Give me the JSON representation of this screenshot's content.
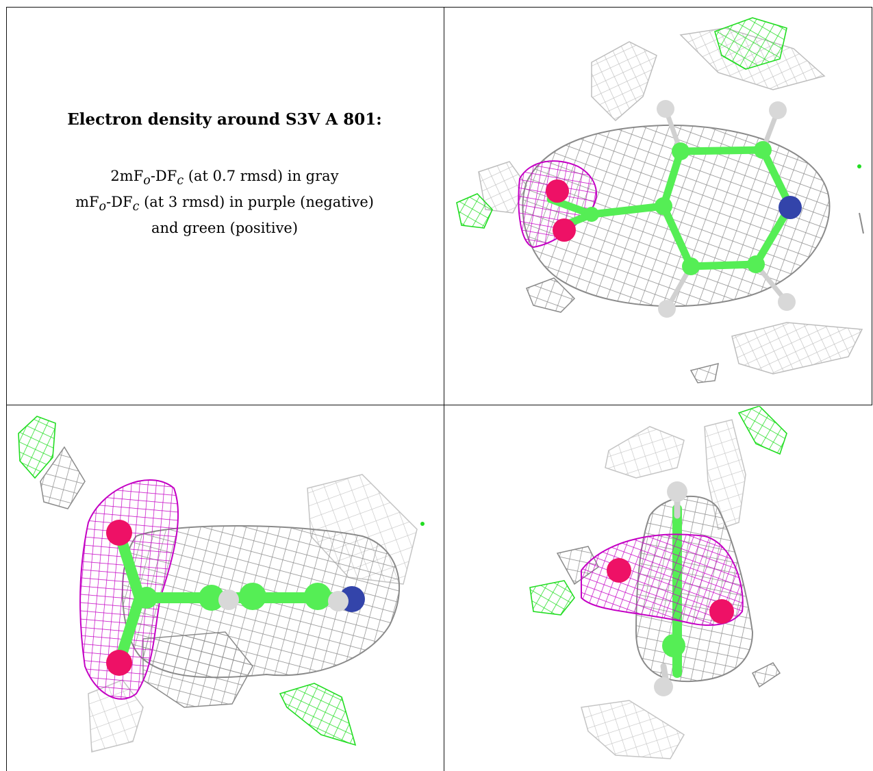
{
  "caption": {
    "title": "Electron density around S3V A 801:",
    "map1_prefix": "2mF",
    "map1_sub1": "o",
    "map1_mid": "-DF",
    "map1_sub2": "c",
    "map1_suffix": " (at 0.7 rmsd) in gray",
    "map2_prefix": "mF",
    "map2_sub1": "o",
    "map2_mid": "-DF",
    "map2_sub2": "c",
    "map2_suffix": " (at 3 rmsd) in purple (negative)",
    "map2_cont": "and green (positive)"
  },
  "colors": {
    "density_2fofc": "#8a8a8a",
    "density_light": "#c4c4c4",
    "negative": "#c400c4",
    "positive": "#22dd22",
    "carbon": "#55ee55",
    "oxygen": "#ee1166",
    "nitrogen": "#3344aa",
    "hydrogen": "#d8d8d8"
  }
}
